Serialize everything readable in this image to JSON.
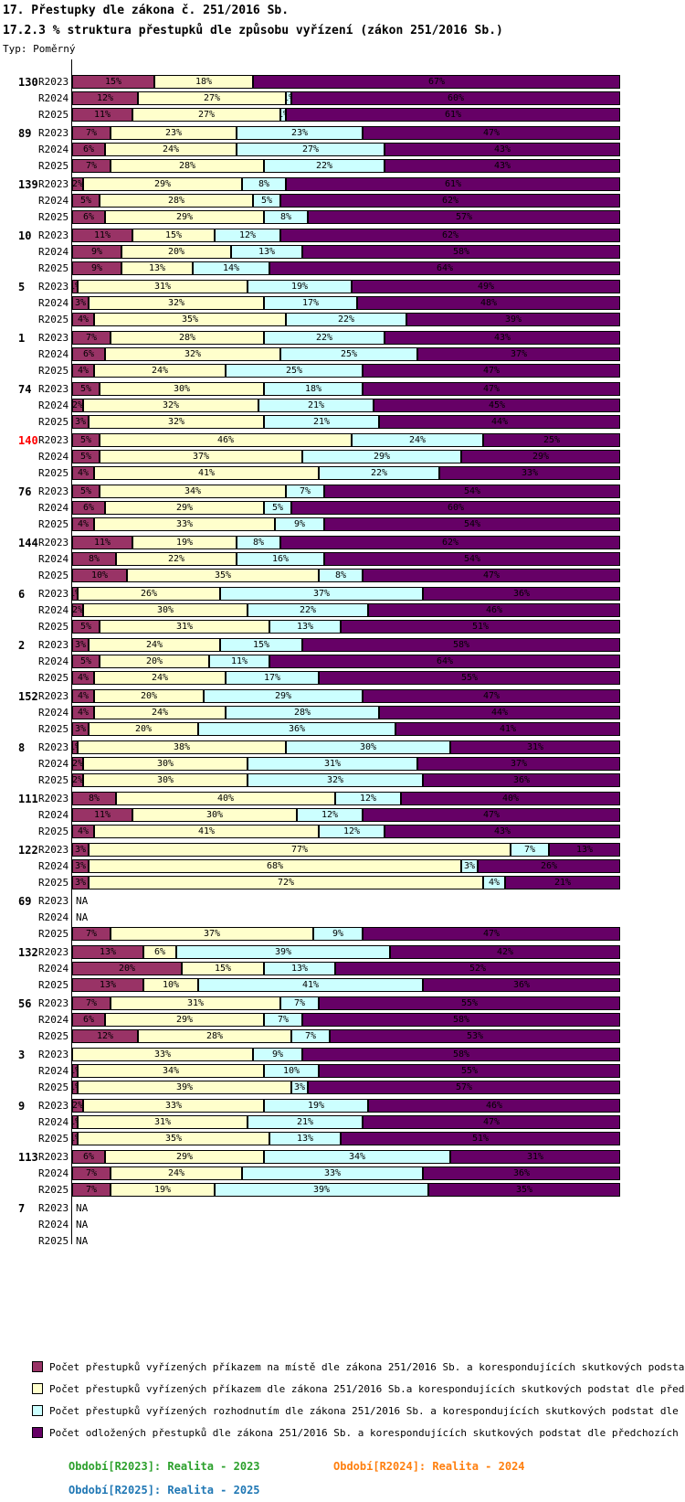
{
  "title": "17. Přestupky dle zákona č. 251/2016 Sb.",
  "subtitle": "17.2.3 % struktura přestupků dle způsobu vyřízení (zákon 251/2016 Sb.)",
  "type_label": "Typ: Poměrný",
  "na_label": "NA",
  "colors": {
    "series1": "#993366",
    "series2": "#FFFFCC",
    "series3": "#CCFFFF",
    "series4": "#660066",
    "highlighted_group_label": "#FF0000",
    "footer_2023": "#2CA02C",
    "footer_2024": "#FF7F0E",
    "footer_2025": "#1F77B4"
  },
  "chart_data": {
    "type": "bar",
    "orientation": "horizontal",
    "stacked": true,
    "unit": "%",
    "x_range": [
      0,
      100
    ],
    "grid": false,
    "legend_position": "bottom",
    "row_labels": [
      "R2023",
      "R2024",
      "R2025"
    ],
    "series_names": [
      "Počet přestupků vyřízených příkazem na místě dle zákona 251/2016 Sb. a korespondujících skutkových podstat dle před",
      "Počet přestupků vyřízených příkazem dle zákona 251/2016 Sb.a korespondujících skutkových podstat dle předchozích př",
      "Počet přestupků vyřízených rozhodnutím dle zákona 251/2016 Sb. a korespondujících skutkových podstat dle předchozíc",
      "Počet odložených přestupků dle zákona 251/2016 Sb. a korespondujících skutkových podstat dle předchozích předpisů"
    ],
    "groups": [
      {
        "id": "130",
        "highlight": false,
        "rows": [
          [
            15,
            18,
            0,
            67
          ],
          [
            12,
            27,
            1,
            60
          ],
          [
            11,
            27,
            1,
            61
          ]
        ]
      },
      {
        "id": "89",
        "highlight": false,
        "rows": [
          [
            7,
            23,
            23,
            47
          ],
          [
            6,
            24,
            27,
            43
          ],
          [
            7,
            28,
            22,
            43
          ]
        ]
      },
      {
        "id": "139",
        "highlight": false,
        "rows": [
          [
            2,
            29,
            8,
            61
          ],
          [
            5,
            28,
            5,
            62
          ],
          [
            6,
            29,
            8,
            57
          ]
        ]
      },
      {
        "id": "10",
        "highlight": false,
        "rows": [
          [
            11,
            15,
            12,
            62
          ],
          [
            9,
            20,
            13,
            58
          ],
          [
            9,
            13,
            14,
            64
          ]
        ]
      },
      {
        "id": "5",
        "highlight": false,
        "rows": [
          [
            1,
            31,
            19,
            49
          ],
          [
            3,
            32,
            17,
            48
          ],
          [
            4,
            35,
            22,
            39
          ]
        ]
      },
      {
        "id": "1",
        "highlight": false,
        "rows": [
          [
            7,
            28,
            22,
            43
          ],
          [
            6,
            32,
            25,
            37
          ],
          [
            4,
            24,
            25,
            47
          ]
        ]
      },
      {
        "id": "74",
        "highlight": false,
        "rows": [
          [
            5,
            30,
            18,
            47
          ],
          [
            2,
            32,
            21,
            45
          ],
          [
            3,
            32,
            21,
            44
          ]
        ]
      },
      {
        "id": "140",
        "highlight": true,
        "rows": [
          [
            5,
            46,
            24,
            25
          ],
          [
            5,
            37,
            29,
            29
          ],
          [
            4,
            41,
            22,
            33
          ]
        ]
      },
      {
        "id": "76",
        "highlight": false,
        "rows": [
          [
            5,
            34,
            7,
            54
          ],
          [
            6,
            29,
            5,
            60
          ],
          [
            4,
            33,
            9,
            54
          ]
        ]
      },
      {
        "id": "144",
        "highlight": false,
        "rows": [
          [
            11,
            19,
            8,
            62
          ],
          [
            8,
            22,
            16,
            54
          ],
          [
            10,
            35,
            8,
            47
          ]
        ]
      },
      {
        "id": "6",
        "highlight": false,
        "rows": [
          [
            1,
            26,
            37,
            36
          ],
          [
            2,
            30,
            22,
            46
          ],
          [
            5,
            31,
            13,
            51
          ]
        ]
      },
      {
        "id": "2",
        "highlight": false,
        "rows": [
          [
            3,
            24,
            15,
            58
          ],
          [
            5,
            20,
            11,
            64
          ],
          [
            4,
            24,
            17,
            55
          ]
        ]
      },
      {
        "id": "152",
        "highlight": false,
        "rows": [
          [
            4,
            20,
            29,
            47
          ],
          [
            4,
            24,
            28,
            44
          ],
          [
            3,
            20,
            36,
            41
          ]
        ]
      },
      {
        "id": "8",
        "highlight": false,
        "rows": [
          [
            1,
            38,
            30,
            31
          ],
          [
            2,
            30,
            31,
            37
          ],
          [
            2,
            30,
            32,
            36
          ]
        ]
      },
      {
        "id": "111",
        "highlight": false,
        "rows": [
          [
            8,
            40,
            12,
            40
          ],
          [
            11,
            30,
            12,
            47
          ],
          [
            4,
            41,
            12,
            43
          ]
        ]
      },
      {
        "id": "122",
        "highlight": false,
        "rows": [
          [
            3,
            77,
            7,
            13
          ],
          [
            3,
            68,
            3,
            26
          ],
          [
            3,
            72,
            4,
            21
          ]
        ]
      },
      {
        "id": "69",
        "highlight": false,
        "rows": [
          null,
          null,
          [
            7,
            37,
            9,
            47
          ]
        ]
      },
      {
        "id": "132",
        "highlight": false,
        "rows": [
          [
            13,
            6,
            39,
            42
          ],
          [
            20,
            15,
            13,
            52
          ],
          [
            13,
            10,
            41,
            36
          ]
        ]
      },
      {
        "id": "56",
        "highlight": false,
        "rows": [
          [
            7,
            31,
            7,
            55
          ],
          [
            6,
            29,
            7,
            58
          ],
          [
            12,
            28,
            7,
            53
          ]
        ]
      },
      {
        "id": "3",
        "highlight": false,
        "rows": [
          [
            0,
            33,
            9,
            58
          ],
          [
            1,
            34,
            10,
            55
          ],
          [
            1,
            39,
            3,
            57
          ]
        ]
      },
      {
        "id": "9",
        "highlight": false,
        "rows": [
          [
            2,
            33,
            19,
            46
          ],
          [
            1,
            31,
            21,
            47
          ],
          [
            1,
            35,
            13,
            51
          ]
        ]
      },
      {
        "id": "113",
        "highlight": false,
        "rows": [
          [
            6,
            29,
            34,
            31
          ],
          [
            7,
            24,
            33,
            36
          ],
          [
            7,
            19,
            39,
            35
          ]
        ]
      },
      {
        "id": "7",
        "highlight": false,
        "rows": [
          null,
          null,
          null
        ]
      }
    ]
  },
  "legend": [
    {
      "label": "Počet přestupků vyřízených příkazem na místě dle zákona 251/2016 Sb. a korespondujících skutkových podstat dle před",
      "color": "#993366"
    },
    {
      "label": "Počet přestupků vyřízených příkazem dle zákona 251/2016 Sb.a korespondujících skutkových podstat dle předchozích př",
      "color": "#FFFFCC"
    },
    {
      "label": "Počet přestupků vyřízených rozhodnutím dle zákona 251/2016 Sb. a korespondujících skutkových podstat dle předchozíc",
      "color": "#CCFFFF"
    },
    {
      "label": "Počet odložených přestupků dle zákona 251/2016 Sb. a korespondujících skutkových podstat dle předchozích předpisů",
      "color": "#660066"
    }
  ],
  "footer": [
    {
      "text": "Období[R2023]: Realita - 2023",
      "color": "#2CA02C"
    },
    {
      "text": "Období[R2024]: Realita - 2024",
      "color": "#FF7F0E"
    },
    {
      "text": "Období[R2025]: Realita - 2025",
      "color": "#1F77B4"
    }
  ]
}
